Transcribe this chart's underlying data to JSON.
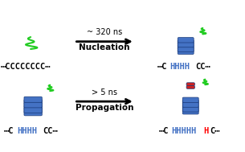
{
  "background_color": "#ffffff",
  "top_arrow_text1": "~ 320 ns",
  "top_arrow_text2": "Nucleation",
  "bottom_arrow_text1": "> 5 ns",
  "bottom_arrow_text2": "Propagation",
  "top_left_label_parts": [
    {
      "text": "⋯CCCCCCCC⋯",
      "color": "#000000"
    }
  ],
  "top_right_label_parts": [
    {
      "text": "⋯C",
      "color": "#000000"
    },
    {
      "text": "HHHH",
      "color": "#4472C4"
    },
    {
      "text": "CC⋯",
      "color": "#000000"
    }
  ],
  "bottom_left_label_parts": [
    {
      "text": "⋯C",
      "color": "#000000"
    },
    {
      "text": "HHHH",
      "color": "#4472C4"
    },
    {
      "text": "CC⋯",
      "color": "#000000"
    }
  ],
  "bottom_right_label_parts": [
    {
      "text": "⋯C",
      "color": "#000000"
    },
    {
      "text": "HHHHH",
      "color": "#4472C4"
    },
    {
      "text": "H",
      "color": "#FF0000"
    },
    {
      "text": "C⋯",
      "color": "#000000"
    }
  ],
  "figsize": [
    3.05,
    1.89
  ],
  "dpi": 100,
  "arrow_color": "#000000",
  "arrow_lw": 2.0,
  "font_size_label": 7.5,
  "font_size_arrow": 7.0
}
